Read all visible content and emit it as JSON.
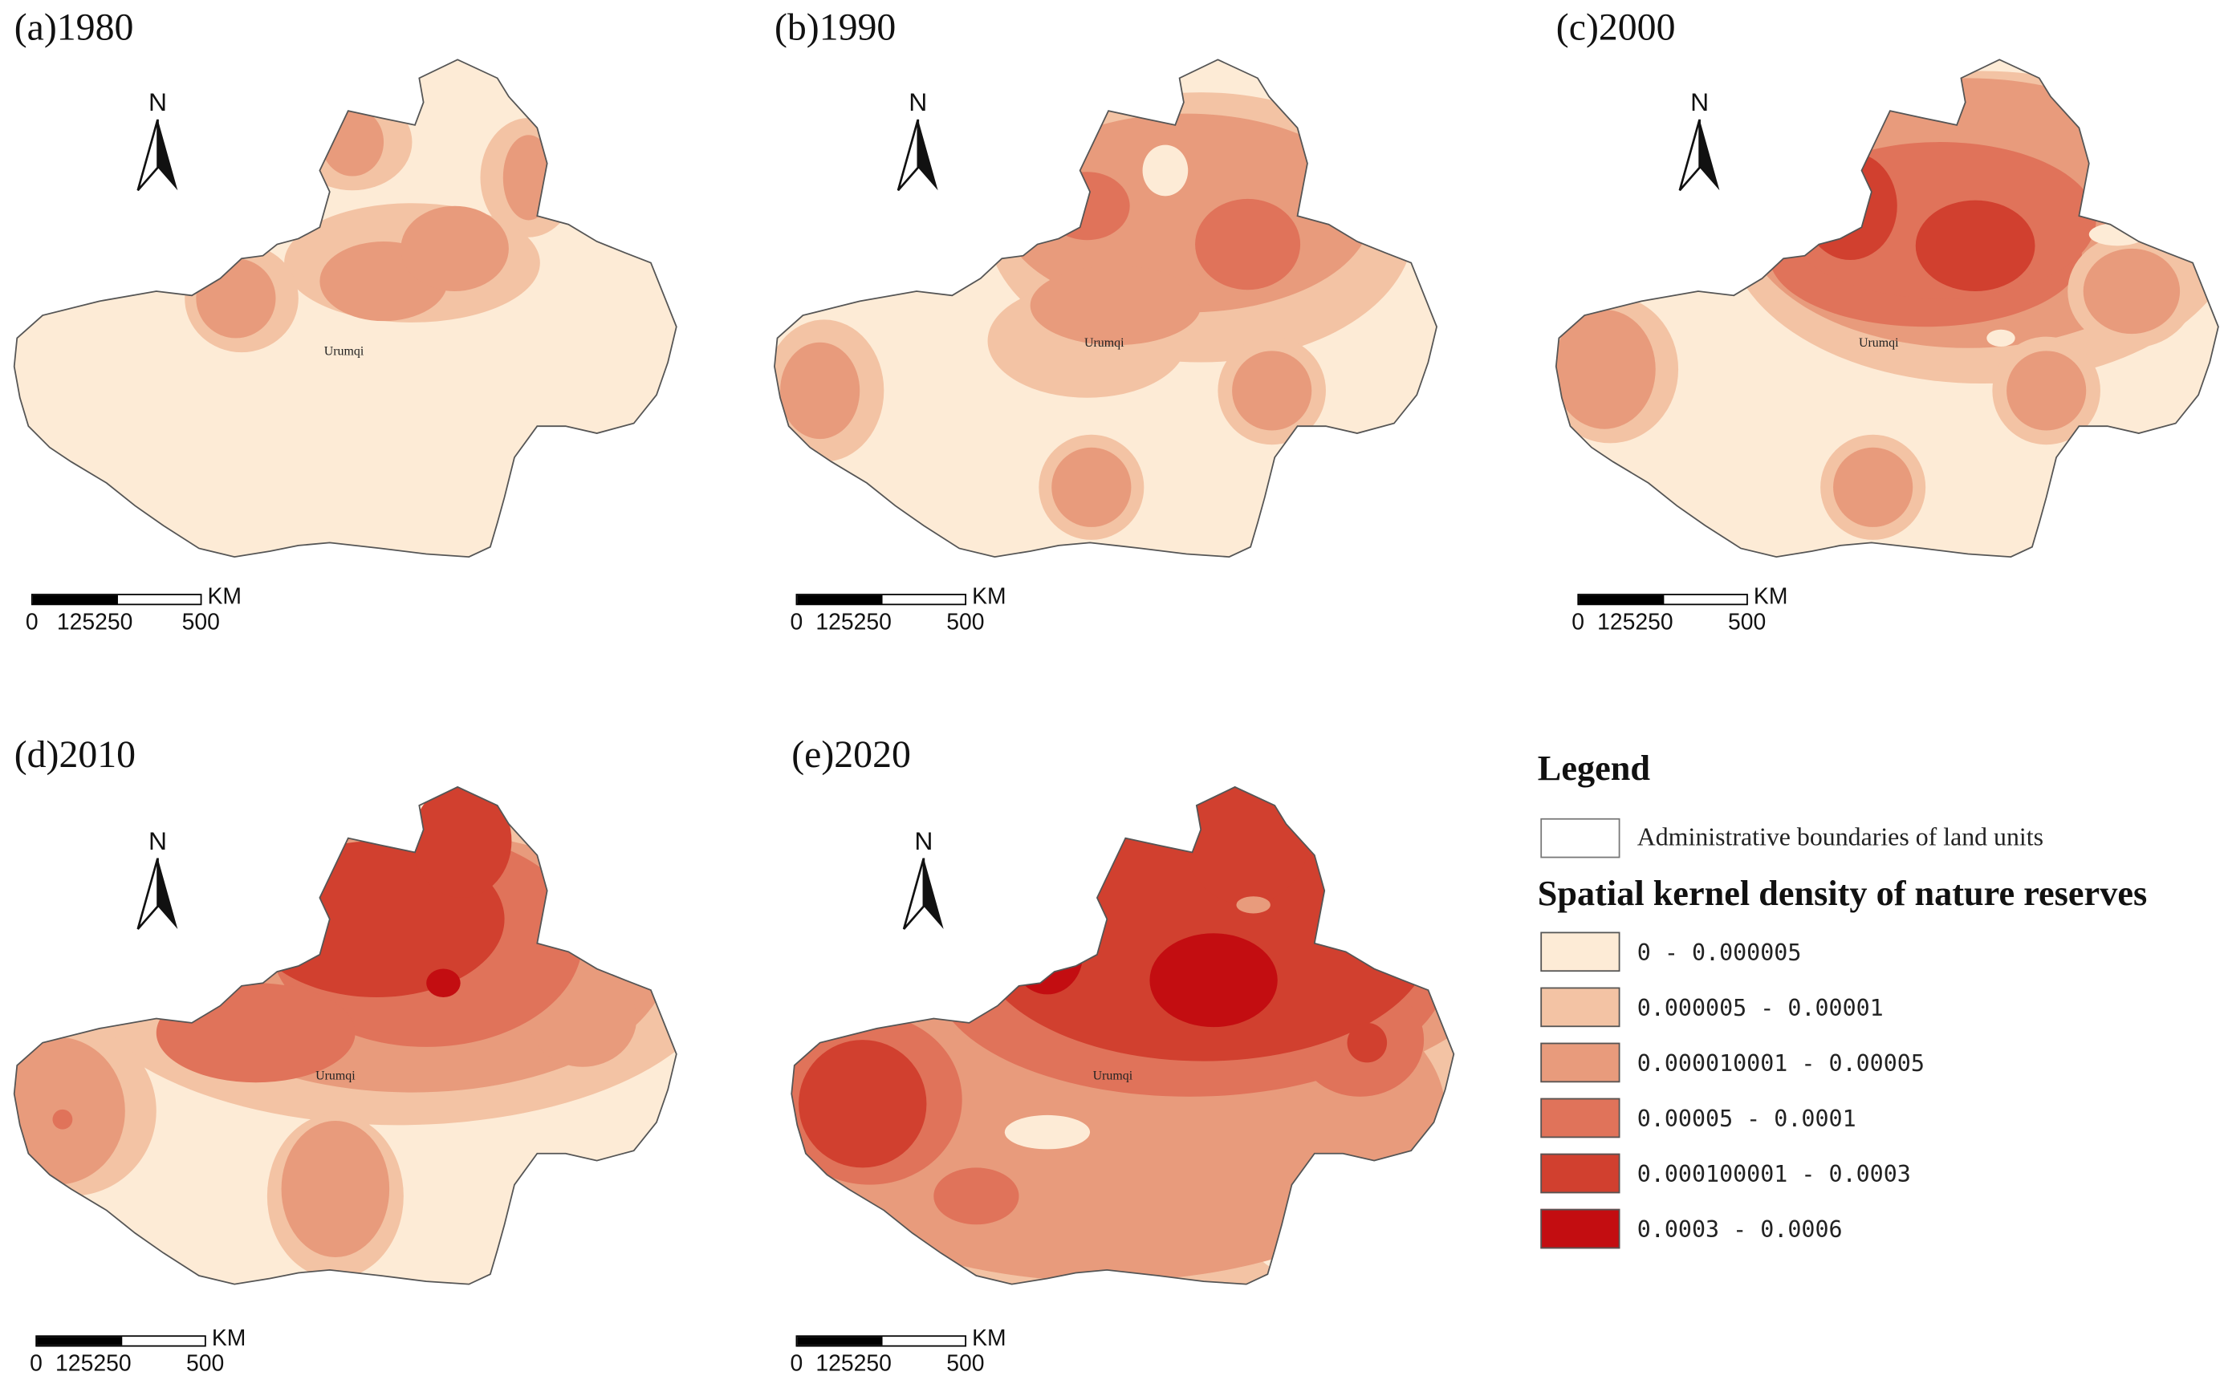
{
  "panels": [
    {
      "label": "(a)1980",
      "city": "Urumqi"
    },
    {
      "label": "(b)1990",
      "city": "Urumqi"
    },
    {
      "label": "(c)2000",
      "city": "Urumqi"
    },
    {
      "label": "(d)2010",
      "city": "Urumqi"
    },
    {
      "label": "(e)2020",
      "city": "Urumqi"
    }
  ],
  "north_arrow": {
    "label": "N"
  },
  "scale_bar": {
    "unit": "KM",
    "ticks": [
      "0",
      "125250",
      "500"
    ]
  },
  "legend": {
    "title": "Legend",
    "boundary_label": "Administrative boundaries of land units",
    "density_title": "Spatial kernel density of nature reserves",
    "classes": [
      {
        "label": "0 - 0.000005",
        "color": "#fdebd6"
      },
      {
        "label": "0.000005 - 0.00001",
        "color": "#f3c3a4"
      },
      {
        "label": "0.000010001 - 0.00005",
        "color": "#e89b7c"
      },
      {
        "label": "0.00005 - 0.0001",
        "color": "#e0735a"
      },
      {
        "label": "0.000100001 - 0.0003",
        "color": "#d1402f"
      },
      {
        "label": "0.0003 - 0.0006",
        "color": "#c30d11"
      }
    ]
  }
}
